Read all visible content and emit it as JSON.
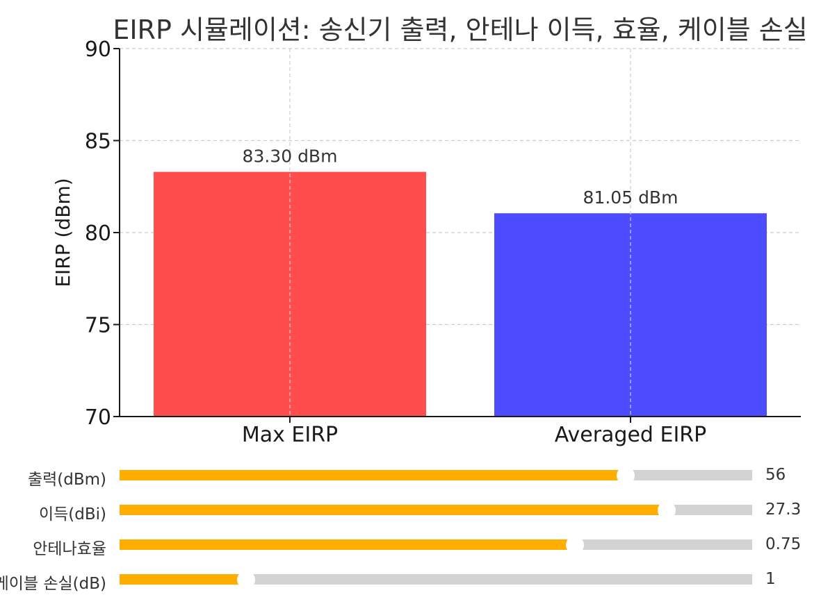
{
  "chart_data": {
    "type": "bar",
    "title": "EIRP 시뮬레이션: 송신기 출력, 안테나 이득, 효율, 케이블 손실",
    "xlabel": "",
    "ylabel": "EIRP (dBm)",
    "ylim": [
      70,
      90
    ],
    "yticks": [
      70,
      75,
      80,
      85,
      90
    ],
    "categories": [
      "Max EIRP",
      "Averaged EIRP"
    ],
    "values": [
      83.3,
      81.05
    ],
    "data_labels": [
      "83.30 dBm",
      "81.05 dBm"
    ],
    "bar_colors": [
      "#ff4d4d",
      "#4d4dff"
    ],
    "grid": true
  },
  "sliders": [
    {
      "label": "출력(dBm)",
      "value": "56",
      "fraction": 0.8
    },
    {
      "label": "이득(dBi)",
      "value": "27.3",
      "fraction": 0.865
    },
    {
      "label": "안테나효율",
      "value": "0.75",
      "fraction": 0.72
    },
    {
      "label": "케이블 손실(dB)",
      "value": "1",
      "fraction": 0.2
    }
  ],
  "colors": {
    "slider_fill": "#ffae00",
    "slider_track": "#d3d3d3",
    "grid": "#cccccc",
    "axis": "#1a1a1a"
  }
}
